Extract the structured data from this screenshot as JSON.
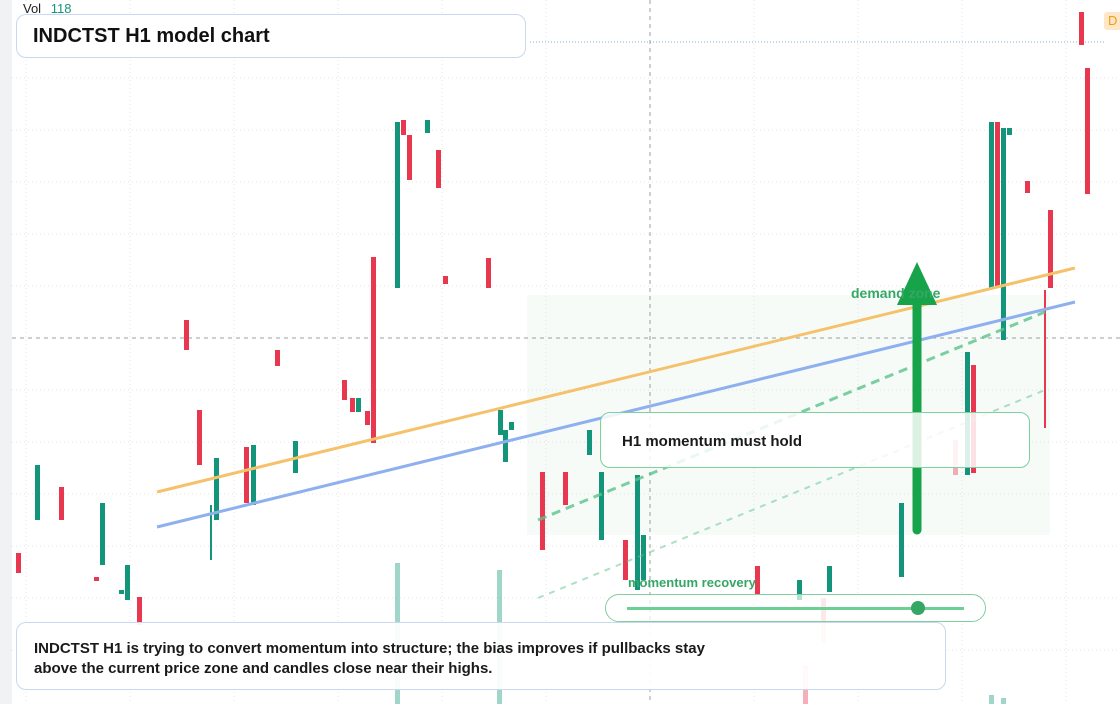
{
  "header": {
    "vol_label": "Vol",
    "vol_value": 118,
    "title": "INDCTST H1 model chart"
  },
  "price_tag": "D",
  "annotations": {
    "zone_label": "demand zone",
    "callout": "H1 momentum must hold",
    "slider_label": "momentum recovery"
  },
  "summary": "INDCTST H1 is trying to convert momentum into structure; the bias improves if pullbacks stay above the current price zone and candles close near their highs."
}
